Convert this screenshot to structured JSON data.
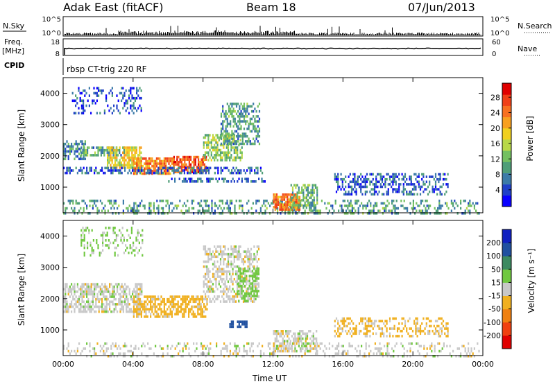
{
  "header": {
    "radar": "Adak East (fitACF)",
    "beam": "Beam 18",
    "date": "07/Jun/2013"
  },
  "nsky": {
    "label": "N.Sky",
    "tick_top": "10^5",
    "tick_bottom": "10^0",
    "right_label": "N.Search"
  },
  "freq": {
    "label_line1": "Freq.",
    "label_line2": "[MHz]",
    "tick_top": "18",
    "tick_bottom": "8",
    "right_tick_top": "60",
    "right_tick_bottom": "0",
    "right_label": "Nave"
  },
  "cpid": {
    "label": "CPID",
    "text": "rbsp CT-trig 220 RF"
  },
  "chart_data": [
    {
      "type": "heatmap",
      "parameter": "power",
      "ylabel": "Slant Range [km]",
      "xlabel": "",
      "y_ticks": [
        "4000",
        "3000",
        "2000",
        "1000"
      ],
      "y_tick_values": [
        4000,
        3000,
        2000,
        1000
      ],
      "ylim": [
        180,
        4500
      ],
      "xlim": [
        0,
        24
      ],
      "colorbar": {
        "label": "Power [dB]",
        "ticks": [
          "28",
          "24",
          "20",
          "16",
          "12",
          "8",
          "4"
        ],
        "range": [
          0,
          32
        ],
        "colors": [
          "#0a00ff",
          "#2040c8",
          "#3c7ba8",
          "#4f9e78",
          "#74c060",
          "#b8d848",
          "#f0d020",
          "#f8a020",
          "#f87020",
          "#f04018",
          "#e00000"
        ]
      },
      "echo_bands": [
        {
          "start_h": 0.0,
          "end_h": 23.8,
          "range_lo": 180,
          "range_hi": 600,
          "value": 10,
          "density": 0.35
        },
        {
          "start_h": 0.0,
          "end_h": 1.3,
          "range_lo": 1900,
          "range_hi": 2500,
          "value": 8,
          "density": 0.6
        },
        {
          "start_h": 1.0,
          "end_h": 3.5,
          "range_lo": 2000,
          "range_hi": 2300,
          "value": 10,
          "density": 0.65
        },
        {
          "start_h": 2.5,
          "end_h": 4.5,
          "range_lo": 1600,
          "range_hi": 2300,
          "value": 18,
          "density": 0.7
        },
        {
          "start_h": 4.0,
          "end_h": 6.3,
          "range_lo": 1400,
          "range_hi": 1950,
          "value": 24,
          "density": 0.75
        },
        {
          "start_h": 6.3,
          "end_h": 8.2,
          "range_lo": 1500,
          "range_hi": 2000,
          "value": 26,
          "density": 0.75
        },
        {
          "start_h": 8.0,
          "end_h": 10.2,
          "range_lo": 1900,
          "range_hi": 2700,
          "value": 14,
          "density": 0.6
        },
        {
          "start_h": 9.0,
          "end_h": 11.2,
          "range_lo": 2400,
          "range_hi": 3700,
          "value": 10,
          "density": 0.5
        },
        {
          "start_h": 0.0,
          "end_h": 11.5,
          "range_lo": 1450,
          "range_hi": 1650,
          "value": 6,
          "density": 0.5
        },
        {
          "start_h": 6.0,
          "end_h": 11.5,
          "range_lo": 1150,
          "range_hi": 1300,
          "value": 6,
          "density": 0.4
        },
        {
          "start_h": 0.5,
          "end_h": 4.5,
          "range_lo": 3400,
          "range_hi": 4200,
          "value": 5,
          "density": 0.25
        },
        {
          "start_h": 12.0,
          "end_h": 13.5,
          "range_lo": 300,
          "range_hi": 800,
          "value": 24,
          "density": 0.8
        },
        {
          "start_h": 13.0,
          "end_h": 14.5,
          "range_lo": 300,
          "range_hi": 1100,
          "value": 12,
          "density": 0.55
        },
        {
          "start_h": 15.5,
          "end_h": 22.0,
          "range_lo": 800,
          "range_hi": 1450,
          "value": 6,
          "density": 0.45
        }
      ]
    },
    {
      "type": "heatmap",
      "parameter": "velocity",
      "ylabel": "Slant Range [km]",
      "xlabel": "Time UT",
      "x_ticks": [
        "00:00",
        "04:00",
        "08:00",
        "12:00",
        "16:00",
        "20:00",
        "00:00"
      ],
      "x_tick_hours": [
        0,
        4,
        8,
        12,
        16,
        20,
        24
      ],
      "y_ticks": [
        "4000",
        "3000",
        "2000",
        "1000"
      ],
      "y_tick_values": [
        4000,
        3000,
        2000,
        1000
      ],
      "ylim": [
        180,
        4500
      ],
      "xlim": [
        0,
        24
      ],
      "colorbar": {
        "label": "Velocity [m s⁻¹]",
        "ticks": [
          "200",
          "100",
          "50",
          "15",
          "-15",
          "-50",
          "-100",
          "-200"
        ],
        "colors": [
          "#1020c0",
          "#2050a0",
          "#3c8a60",
          "#70c840",
          "#c8c8c8",
          "#f0b020",
          "#f08010",
          "#f04010",
          "#e00000"
        ]
      },
      "echo_bands": [
        {
          "start_h": 0.0,
          "end_h": 23.8,
          "range_lo": 180,
          "range_hi": 600,
          "value": 0,
          "density": 0.25
        },
        {
          "start_h": 0.0,
          "end_h": 4.5,
          "range_lo": 1600,
          "range_hi": 2500,
          "value": 0,
          "density": 0.6
        },
        {
          "start_h": 4.0,
          "end_h": 8.2,
          "range_lo": 1400,
          "range_hi": 2100,
          "value": -30,
          "density": 0.65
        },
        {
          "start_h": 8.0,
          "end_h": 11.2,
          "range_lo": 1900,
          "range_hi": 3700,
          "value": 0,
          "density": 0.5
        },
        {
          "start_h": 10.0,
          "end_h": 11.2,
          "range_lo": 1900,
          "range_hi": 3000,
          "value": 30,
          "density": 0.55
        },
        {
          "start_h": 9.5,
          "end_h": 10.5,
          "range_lo": 1100,
          "range_hi": 1300,
          "value": 150,
          "density": 0.7
        },
        {
          "start_h": 1.0,
          "end_h": 4.5,
          "range_lo": 3400,
          "range_hi": 4300,
          "value": 20,
          "density": 0.25
        },
        {
          "start_h": 12.0,
          "end_h": 14.5,
          "range_lo": 300,
          "range_hi": 1000,
          "value": 0,
          "density": 0.6
        },
        {
          "start_h": 15.5,
          "end_h": 22.0,
          "range_lo": 800,
          "range_hi": 1400,
          "value": -20,
          "density": 0.4
        }
      ]
    }
  ]
}
